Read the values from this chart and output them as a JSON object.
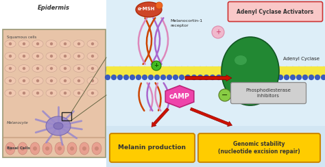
{
  "bg_color": "#ffffff",
  "membrane_ball_color": "#3a5bbf",
  "membrane_mid_color": "#f5e840",
  "cell_interior_color": "#ddeef8",
  "cell_interior_color2": "#c8dff0",
  "epidermis_skin_color": "#e8c4a8",
  "epidermis_skin_color2": "#d4a888",
  "epidermis_label": "Epidermis",
  "squamous_label": "Squamous cells",
  "melanocyte_label": "Melanocyte",
  "basal_label": "Basal Cells",
  "alpha_msh_label": "α-MSH",
  "receptor_label": "Melanocortin-1\nreceptor",
  "adenyl_cyclase_label": "Adenyl Cyclase",
  "adenyl_activators_label": "Adenyl Cyclase Activators",
  "camp_label": "cAMP",
  "pde_label": "Phosphodiesterase\ninhibitors",
  "melanin_label": "Melanin production",
  "genomic_label": "Genomic stability\n(nucleotide excision repair)",
  "adenyl_cyclase_color": "#228833",
  "adenyl_cyclase_color2": "#44aa55",
  "camp_color": "#ee44aa",
  "pde_ball_color": "#88cc44",
  "melanin_box_color": "#ffcc00",
  "genomic_box_color": "#ffcc00",
  "adenyl_act_box_color": "#f9c8c8",
  "pde_box_color": "#d0d0d0",
  "arrow_color": "#cc1100",
  "receptor_orange": "#cc4400",
  "receptor_purple": "#aa66cc",
  "receptor_pink": "#dd88bb",
  "cell_purple_color": "#9988cc",
  "basal_pink": "#e8a090"
}
